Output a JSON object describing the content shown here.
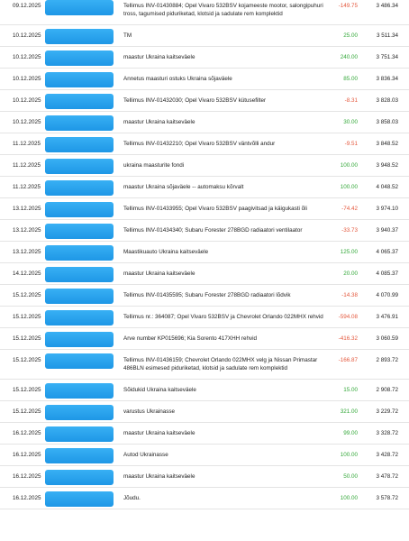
{
  "rows": [
    {
      "date": "09.12.2025",
      "description": "Tellimus INV-01430884; Opel Vivaro 532BSV kojameeste mootor, salongipuhuri tross, tagumised piduriketad, klotsid ja sadulate rem komplektid",
      "amount": "-149.75",
      "balance": "3 486.34"
    },
    {
      "date": "10.12.2025",
      "description": "TM",
      "amount": "25.00",
      "balance": "3 511.34"
    },
    {
      "date": "10.12.2025",
      "description": "maastur Ukraina kaitseväele",
      "amount": "240.00",
      "balance": "3 751.34"
    },
    {
      "date": "10.12.2025",
      "description": "Annetus maasturi ostuks Ukraina sõjaväele",
      "amount": "85.00",
      "balance": "3 836.34"
    },
    {
      "date": "10.12.2025",
      "description": "Tellimus INV-01432030; Opel Vivaro 532BSV kütusefilter",
      "amount": "-8.31",
      "balance": "3 828.03"
    },
    {
      "date": "10.12.2025",
      "description": "maastur Ukraina kaitseväele",
      "amount": "30.00",
      "balance": "3 858.03"
    },
    {
      "date": "11.12.2025",
      "description": "Tellimus INV-01432210; Opel Vivaro 532BSV väntvõlli andur",
      "amount": "-9.51",
      "balance": "3 848.52"
    },
    {
      "date": "11.12.2025",
      "description": "ukraina maasturite fondi",
      "amount": "100.00",
      "balance": "3 948.52"
    },
    {
      "date": "11.12.2025",
      "description": "maastur Ukraina sõjaväele -- automaksu kõrvalt",
      "amount": "100.00",
      "balance": "4 048.52"
    },
    {
      "date": "13.12.2025",
      "description": "Tellimus INV-01433955; Opel Vivaro 532BSV paagivitsad ja käigukasti õli",
      "amount": "-74.42",
      "balance": "3 974.10"
    },
    {
      "date": "13.12.2025",
      "description": "Tellimus INV-01434340; Subaru Forester 278BGD radiaatori ventilaator",
      "amount": "-33.73",
      "balance": "3 940.37"
    },
    {
      "date": "13.12.2025",
      "description": "Maastikuauto Ukraina kaitseväele",
      "amount": "125.00",
      "balance": "4 065.37"
    },
    {
      "date": "14.12.2025",
      "description": "maastur Ukraina kaitseväele",
      "amount": "20.00",
      "balance": "4 085.37"
    },
    {
      "date": "15.12.2025",
      "description": "Tellimus INV-01435595; Subaru Forester 278BGD radiaatori lõdvik",
      "amount": "-14.38",
      "balance": "4 070.99"
    },
    {
      "date": "15.12.2025",
      "description": "Tellimus nr.: 364087; Opel Vivaro 532BSV ja Chevrolet Orlando 022MHX rehvid",
      "amount": "-594.08",
      "balance": "3 476.91"
    },
    {
      "date": "15.12.2025",
      "description": "Arve number KP015696; Kia Sorento 417XHH rehvid",
      "amount": "-416.32",
      "balance": "3 060.59"
    },
    {
      "date": "15.12.2025",
      "description": "Tellimus INV-01436159; Chevrolet Orlando 022MHX velg ja Nissan Primastar 486BLN esimesed piduriketad, klotsid ja sadulate rem komplektid",
      "amount": "-166.87",
      "balance": "2 893.72"
    },
    {
      "date": "15.12.2025",
      "description": "Sõidukid Ukraina kaitseväele",
      "amount": "15.00",
      "balance": "2 908.72"
    },
    {
      "date": "15.12.2025",
      "description": "varustus Ukrainasse",
      "amount": "321.00",
      "balance": "3 229.72"
    },
    {
      "date": "16.12.2025",
      "description": "maastur Ukraina kaitseväele",
      "amount": "99.00",
      "balance": "3 328.72"
    },
    {
      "date": "16.12.2025",
      "description": "Autod Ukrainasse",
      "amount": "100.00",
      "balance": "3 428.72"
    },
    {
      "date": "16.12.2025",
      "description": "maastur Ukraina kaitseväele",
      "amount": "50.00",
      "balance": "3 478.72"
    },
    {
      "date": "16.12.2025",
      "description": "Jõudu.",
      "amount": "100.00",
      "balance": "3 578.72"
    }
  ]
}
